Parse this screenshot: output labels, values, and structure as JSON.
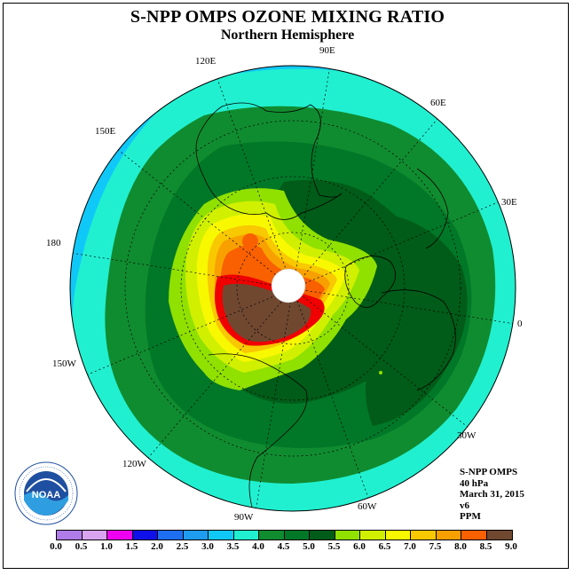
{
  "title": "S-NPP OMPS OZONE MIXING RATIO",
  "subtitle": "Northern Hemisphere",
  "longitude_labels": [
    {
      "id": "lon-90e",
      "text": "90E"
    },
    {
      "id": "lon-120e",
      "text": "120E"
    },
    {
      "id": "lon-60e",
      "text": "60E"
    },
    {
      "id": "lon-150e",
      "text": "150E"
    },
    {
      "id": "lon-30e",
      "text": "30E"
    },
    {
      "id": "lon-180",
      "text": "180"
    },
    {
      "id": "lon-0",
      "text": "0"
    },
    {
      "id": "lon-150w",
      "text": "150W"
    },
    {
      "id": "lon-30w",
      "text": "30W"
    },
    {
      "id": "lon-120w",
      "text": "120W"
    },
    {
      "id": "lon-60w",
      "text": "60W"
    },
    {
      "id": "lon-90w",
      "text": "90W"
    }
  ],
  "info": {
    "instrument": "S-NPP OMPS",
    "pressure": "40 hPa",
    "date": "March 31, 2015",
    "version": "v6",
    "units": "PPM"
  },
  "logo": {
    "text": "NOAA",
    "ring_text": "NATIONAL OCEANIC AND ATMOSPHERIC ADMINISTRATION U.S. DEPARTMENT OF COMMERCE"
  },
  "colorbar": {
    "ticks": [
      "0.0",
      "0.5",
      "1.0",
      "1.5",
      "2.0",
      "2.5",
      "3.0",
      "3.5",
      "4.0",
      "4.5",
      "5.0",
      "5.5",
      "6.0",
      "6.5",
      "7.0",
      "7.5",
      "8.0",
      "8.5",
      "9.0"
    ],
    "colors": [
      "#b07ce8",
      "#d8a4f0",
      "#f000f0",
      "#1010e8",
      "#1e6ef0",
      "#1e9cf0",
      "#10c8f8",
      "#20f0d0",
      "#108c30",
      "#007828",
      "#005c18",
      "#90e000",
      "#d0f000",
      "#f8f800",
      "#f8c800",
      "#f8a000",
      "#f86000",
      "#f00000",
      "#704830"
    ]
  }
}
